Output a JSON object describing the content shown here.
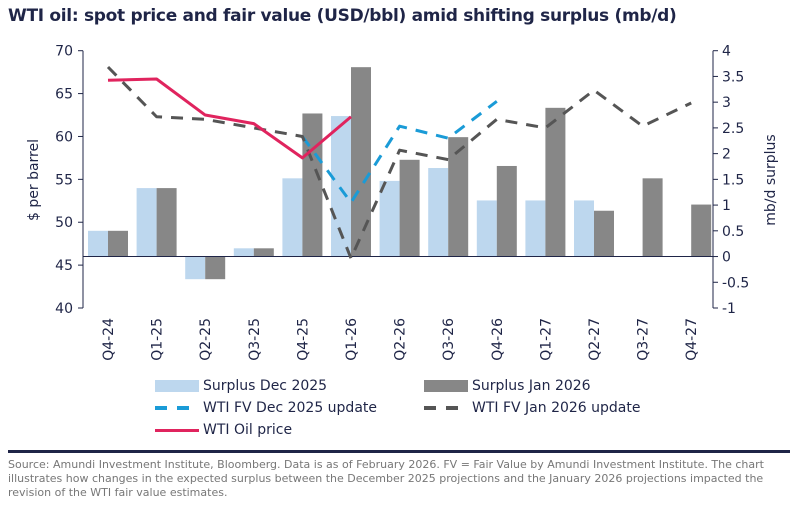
{
  "title": "WTI oil: spot price and fair value (USD/bbl) amid shifting surplus (mb/d)",
  "chart_data": {
    "type": "bar+line",
    "title": "WTI oil: spot price and fair value (USD/bbl) amid shifting surplus (mb/d)",
    "categories": [
      "Q4-24",
      "Q1-25",
      "Q2-25",
      "Q3-25",
      "Q4-25",
      "Q1-26",
      "Q2-26",
      "Q3-26",
      "Q4-26",
      "Q1-27",
      "Q2-27",
      "Q3-27",
      "Q4-27"
    ],
    "ylabel_left": "$ per barrel",
    "ylabel_right": "mb/d surplus",
    "ylim_left": [
      40,
      70
    ],
    "yticks_left": [
      "40",
      "45",
      "50",
      "55",
      "60",
      "65",
      "70"
    ],
    "ylim_right": [
      -1,
      4
    ],
    "yticks_right": [
      "-1",
      "-0.5",
      "0",
      "0.5",
      "1",
      "1.5",
      "2",
      "2.5",
      "3",
      "3.5",
      "4"
    ],
    "grid": false,
    "legend_placement": "bottom",
    "bar_series": [
      {
        "name": "Surplus Dec 2025",
        "axis": "right",
        "color": "#bdd7ee",
        "values": [
          0.5,
          1.33,
          -0.44,
          0.16,
          1.52,
          2.73,
          1.47,
          1.72,
          1.09,
          1.09,
          1.09,
          null,
          null
        ]
      },
      {
        "name": "Surplus Jan 2026",
        "axis": "right",
        "color": "#878787",
        "values": [
          0.5,
          1.33,
          -0.44,
          0.16,
          2.78,
          3.68,
          1.88,
          2.32,
          1.76,
          2.89,
          0.89,
          1.52,
          1.01
        ]
      }
    ],
    "line_series": [
      {
        "name": "WTI FV Dec 2025 update",
        "axis": "left",
        "color": "#1a9bd7",
        "dash": true,
        "values": [
          null,
          null,
          null,
          null,
          60.0,
          52.3,
          61.2,
          59.8,
          64.1,
          null,
          null,
          null,
          null
        ]
      },
      {
        "name": "WTI FV Jan 2026 update",
        "axis": "left",
        "color": "#555555",
        "dash": true,
        "values": [
          68.1,
          62.3,
          62.0,
          61.0,
          60.0,
          45.8,
          58.4,
          57.3,
          62.0,
          61.0,
          65.4,
          61.2,
          63.9
        ]
      },
      {
        "name": "WTI Oil price",
        "axis": "left",
        "color": "#e0245e",
        "dash": false,
        "values": [
          66.55,
          66.7,
          62.5,
          61.5,
          57.5,
          62.3,
          null,
          null,
          null,
          null,
          null,
          null,
          null
        ]
      }
    ]
  },
  "source": "Source: Amundi Investment Institute, Bloomberg. Data is as of February 2026. FV = Fair Value by Amundi Investment Institute. The chart illustrates how changes in the expected surplus between the December 2025 projections and the January 2026 projections impacted the revision of the WTI fair value estimates."
}
